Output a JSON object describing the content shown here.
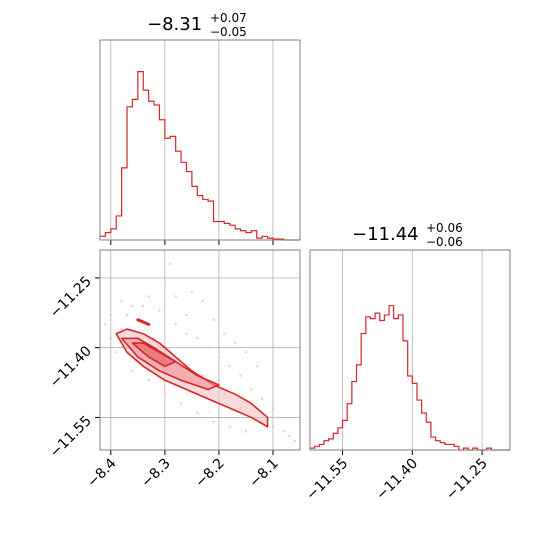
{
  "chart_data": [
    {
      "type": "histogram",
      "panel": "marginal-param1",
      "title": {
        "value": "−8.31",
        "plus": "+0.07",
        "minus": "−0.05"
      },
      "xlim": [
        -8.42,
        -8.05
      ],
      "ylim": [
        0,
        1.0
      ],
      "color": "#d62728",
      "x_ticks": [
        -8.4,
        -8.3,
        -8.2,
        -8.1
      ],
      "x_tick_labels_shown": false,
      "y_ticks_shown": false,
      "grid": true,
      "bin_edges": [
        -8.42,
        -8.41,
        -8.4,
        -8.39,
        -8.38,
        -8.37,
        -8.36,
        -8.35,
        -8.34,
        -8.33,
        -8.32,
        -8.31,
        -8.3,
        -8.29,
        -8.28,
        -8.27,
        -8.26,
        -8.25,
        -8.24,
        -8.23,
        -8.22,
        -8.21,
        -8.2,
        -8.19,
        -8.18,
        -8.17,
        -8.16,
        -8.15,
        -8.14,
        -8.13,
        -8.12,
        -8.11,
        -8.1,
        -8.09,
        -8.08,
        -8.07,
        -8.06,
        -8.05
      ],
      "counts": [
        0.02,
        0.04,
        0.06,
        0.13,
        0.39,
        0.72,
        0.76,
        0.91,
        0.81,
        0.75,
        0.73,
        0.65,
        0.55,
        0.56,
        0.48,
        0.42,
        0.37,
        0.29,
        0.24,
        0.22,
        0.21,
        0.1,
        0.1,
        0.09,
        0.08,
        0.06,
        0.05,
        0.04,
        0.05,
        0.01,
        0.02,
        0.01,
        0.005,
        0.005,
        0.0,
        0.0,
        0.0
      ]
    },
    {
      "type": "contour-scatter",
      "panel": "joint",
      "xlim": [
        -8.42,
        -8.05
      ],
      "ylim": [
        -11.62,
        -11.19
      ],
      "color": "#d62728",
      "x_ticks": [
        -8.4,
        -8.3,
        -8.2,
        -8.1
      ],
      "x_tick_labels": [
        "−8.4",
        "−8.3",
        "−8.2",
        "−8.1"
      ],
      "y_ticks": [
        -11.25,
        -11.4,
        -11.55
      ],
      "y_tick_labels": [
        "−11.25",
        "−11.40",
        "−11.55"
      ],
      "grid": true,
      "contour_outer": [
        [
          -8.39,
          -11.37
        ],
        [
          -8.37,
          -11.41
        ],
        [
          -8.34,
          -11.44
        ],
        [
          -8.3,
          -11.47
        ],
        [
          -8.26,
          -11.49
        ],
        [
          -8.22,
          -11.51
        ],
        [
          -8.18,
          -11.53
        ],
        [
          -8.14,
          -11.55
        ],
        [
          -8.11,
          -11.57
        ],
        [
          -8.11,
          -11.55
        ],
        [
          -8.14,
          -11.52
        ],
        [
          -8.17,
          -11.5
        ],
        [
          -8.21,
          -11.48
        ],
        [
          -8.25,
          -11.45
        ],
        [
          -8.28,
          -11.42
        ],
        [
          -8.31,
          -11.39
        ],
        [
          -8.34,
          -11.37
        ],
        [
          -8.37,
          -11.36
        ],
        [
          -8.39,
          -11.37
        ]
      ],
      "contour_mid": [
        [
          -8.38,
          -11.38
        ],
        [
          -8.35,
          -11.42
        ],
        [
          -8.31,
          -11.45
        ],
        [
          -8.27,
          -11.47
        ],
        [
          -8.22,
          -11.49
        ],
        [
          -8.2,
          -11.48
        ],
        [
          -8.24,
          -11.46
        ],
        [
          -8.28,
          -11.43
        ],
        [
          -8.32,
          -11.4
        ],
        [
          -8.35,
          -11.38
        ],
        [
          -8.38,
          -11.38
        ]
      ],
      "contour_inner": [
        [
          -8.36,
          -11.39
        ],
        [
          -8.33,
          -11.42
        ],
        [
          -8.3,
          -11.44
        ],
        [
          -8.28,
          -11.43
        ],
        [
          -8.31,
          -11.41
        ],
        [
          -8.34,
          -11.39
        ],
        [
          -8.36,
          -11.39
        ]
      ],
      "blob": [
        [
          -8.35,
          -11.34
        ],
        [
          -8.33,
          -11.35
        ]
      ],
      "scatter": [
        [
          -8.4,
          -11.33
        ],
        [
          -8.38,
          -11.3
        ],
        [
          -8.36,
          -11.31
        ],
        [
          -8.33,
          -11.29
        ],
        [
          -8.31,
          -11.32
        ],
        [
          -8.28,
          -11.35
        ],
        [
          -8.26,
          -11.33
        ],
        [
          -8.24,
          -11.38
        ],
        [
          -8.22,
          -11.4
        ],
        [
          -8.2,
          -11.42
        ],
        [
          -8.18,
          -11.44
        ],
        [
          -8.16,
          -11.46
        ],
        [
          -8.14,
          -11.49
        ],
        [
          -8.12,
          -11.51
        ],
        [
          -8.1,
          -11.53
        ],
        [
          -8.09,
          -11.55
        ],
        [
          -8.08,
          -11.58
        ],
        [
          -8.07,
          -11.59
        ],
        [
          -8.41,
          -11.35
        ],
        [
          -8.39,
          -11.41
        ],
        [
          -8.36,
          -11.45
        ],
        [
          -8.33,
          -11.47
        ],
        [
          -8.3,
          -11.5
        ],
        [
          -8.27,
          -11.52
        ],
        [
          -8.24,
          -11.54
        ],
        [
          -8.21,
          -11.56
        ],
        [
          -8.18,
          -11.57
        ],
        [
          -8.15,
          -11.58
        ],
        [
          -8.3,
          -11.26
        ],
        [
          -8.29,
          -11.22
        ],
        [
          -8.25,
          -11.28
        ],
        [
          -8.23,
          -11.3
        ],
        [
          -8.21,
          -11.34
        ],
        [
          -8.19,
          -11.37
        ],
        [
          -8.17,
          -11.39
        ],
        [
          -8.15,
          -11.41
        ],
        [
          -8.13,
          -11.44
        ],
        [
          -8.32,
          -11.38
        ],
        [
          -8.29,
          -11.41
        ],
        [
          -8.26,
          -11.44
        ],
        [
          -8.23,
          -11.46
        ],
        [
          -8.2,
          -11.47
        ],
        [
          -8.35,
          -11.43
        ],
        [
          -8.38,
          -11.36
        ],
        [
          -8.4,
          -11.38
        ],
        [
          -8.37,
          -11.33
        ],
        [
          -8.34,
          -11.31
        ],
        [
          -8.28,
          -11.29
        ],
        [
          -8.26,
          -11.37
        ],
        [
          -8.19,
          -11.5
        ],
        [
          -8.16,
          -11.53
        ],
        [
          -8.12,
          -11.56
        ],
        [
          -8.1,
          -11.57
        ],
        [
          -8.06,
          -11.6
        ]
      ]
    },
    {
      "type": "histogram",
      "panel": "marginal-param2",
      "title": {
        "value": "−11.44",
        "plus": "+0.06",
        "minus": "−0.06"
      },
      "xlim": [
        -11.62,
        -11.19
      ],
      "ylim": [
        0,
        1.0
      ],
      "color": "#d62728",
      "x_ticks": [
        -11.55,
        -11.4,
        -11.25
      ],
      "x_tick_labels": [
        "−11.55",
        "−11.40",
        "−11.25"
      ],
      "y_ticks_shown": false,
      "grid": true,
      "bin_edges": [
        -11.62,
        -11.61,
        -11.6,
        -11.59,
        -11.58,
        -11.57,
        -11.56,
        -11.55,
        -11.54,
        -11.53,
        -11.52,
        -11.51,
        -11.5,
        -11.49,
        -11.48,
        -11.47,
        -11.46,
        -11.45,
        -11.44,
        -11.43,
        -11.42,
        -11.41,
        -11.4,
        -11.39,
        -11.38,
        -11.37,
        -11.36,
        -11.35,
        -11.34,
        -11.33,
        -11.32,
        -11.31,
        -11.3,
        -11.29,
        -11.28,
        -11.27,
        -11.26,
        -11.25,
        -11.24,
        -11.23,
        -11.22,
        -11.21,
        -11.2,
        -11.19
      ],
      "counts": [
        0.01,
        0.02,
        0.03,
        0.05,
        0.06,
        0.09,
        0.12,
        0.16,
        0.25,
        0.37,
        0.46,
        0.63,
        0.72,
        0.71,
        0.74,
        0.7,
        0.73,
        0.78,
        0.71,
        0.73,
        0.59,
        0.4,
        0.36,
        0.27,
        0.2,
        0.15,
        0.07,
        0.05,
        0.04,
        0.03,
        0.03,
        0.02,
        0.0,
        0.01,
        0.0,
        0.01,
        0.0,
        0.0,
        0.01,
        0.0,
        0.0,
        0.0,
        0.0
      ]
    }
  ]
}
